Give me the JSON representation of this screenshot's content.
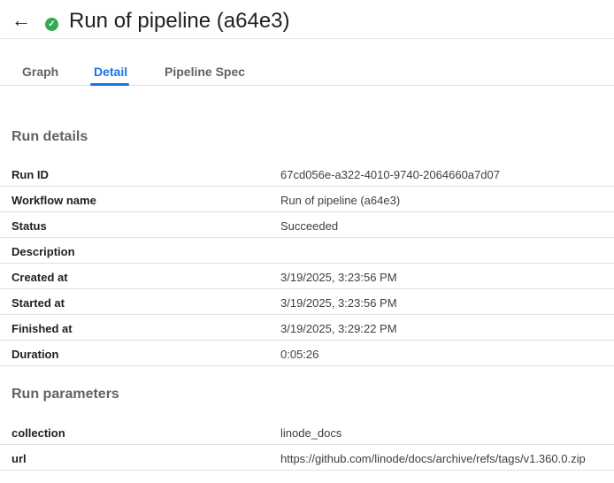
{
  "header": {
    "title": "Run of pipeline (a64e3)",
    "status_icon": "check-circle-icon",
    "status_color": "#34a853"
  },
  "tabs": [
    {
      "label": "Graph"
    },
    {
      "label": "Detail",
      "active": true
    },
    {
      "label": "Pipeline Spec"
    }
  ],
  "run_details": {
    "title": "Run details",
    "rows": [
      {
        "key": "Run ID",
        "value": "67cd056e-a322-4010-9740-2064660a7d07"
      },
      {
        "key": "Workflow name",
        "value": "Run of pipeline (a64e3)"
      },
      {
        "key": "Status",
        "value": "Succeeded"
      },
      {
        "key": "Description",
        "value": ""
      },
      {
        "key": "Created at",
        "value": "3/19/2025, 3:23:56 PM"
      },
      {
        "key": "Started at",
        "value": "3/19/2025, 3:23:56 PM"
      },
      {
        "key": "Finished at",
        "value": "3/19/2025, 3:29:22 PM"
      },
      {
        "key": "Duration",
        "value": "0:05:26"
      }
    ]
  },
  "run_parameters": {
    "title": "Run parameters",
    "rows": [
      {
        "key": "collection",
        "value": "linode_docs"
      },
      {
        "key": "url",
        "value": "https://github.com/linode/docs/archive/refs/tags/v1.360.0.zip"
      }
    ]
  }
}
